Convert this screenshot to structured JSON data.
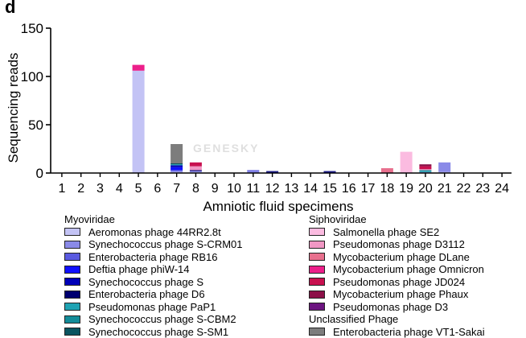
{
  "panel_label": "d",
  "watermark": "GENESKY",
  "chart_data": {
    "type": "bar",
    "stacked": true,
    "xlabel": "Amniotic fluid specimens",
    "ylabel": "Sequencing reads",
    "ylim": [
      0,
      150
    ],
    "yticks": [
      0,
      50,
      100,
      150
    ],
    "categories": [
      "1",
      "2",
      "3",
      "4",
      "5",
      "6",
      "7",
      "8",
      "9",
      "10",
      "11",
      "12",
      "13",
      "14",
      "15",
      "16",
      "17",
      "18",
      "19",
      "20",
      "21",
      "22",
      "23",
      "24"
    ],
    "series": [
      {
        "name": "Aeromonas phage 44RR2.8t",
        "color": "#c3c3f5",
        "values": [
          0,
          0,
          0,
          0,
          106,
          0,
          1,
          1,
          0,
          0,
          0,
          0,
          0,
          0,
          0,
          0,
          0,
          0,
          0,
          0,
          1,
          0,
          0,
          0
        ]
      },
      {
        "name": "Synechococcus phage S-CRM01",
        "color": "#8a8ae8",
        "values": [
          0,
          0,
          0,
          0,
          0,
          0,
          1,
          1,
          0,
          0,
          2,
          0,
          0,
          0,
          0,
          0,
          0,
          0,
          0,
          1,
          10,
          0,
          0,
          0
        ]
      },
      {
        "name": "Enterobacteria phage RB16",
        "color": "#5a5ae0",
        "values": [
          0,
          0,
          0,
          0,
          0,
          0,
          1,
          0,
          0,
          0,
          1,
          0,
          0,
          0,
          0,
          0,
          0,
          0,
          0,
          0,
          0,
          0,
          0,
          0
        ]
      },
      {
        "name": "Deftia phage phiW-14",
        "color": "#1010ff",
        "values": [
          0,
          0,
          0,
          0,
          0,
          0,
          3,
          0,
          0,
          0,
          0,
          0,
          0,
          0,
          0,
          0,
          0,
          0,
          0,
          0,
          0,
          0,
          0,
          0
        ]
      },
      {
        "name": "Synechococcus phage S",
        "color": "#0000b8",
        "values": [
          0,
          0,
          0,
          0,
          0,
          0,
          2,
          0,
          0,
          0,
          0,
          1,
          0,
          0,
          1,
          0,
          0,
          0,
          0,
          0,
          0,
          0,
          0,
          0
        ]
      },
      {
        "name": "Enterobacteria phage D6",
        "color": "#000070",
        "values": [
          0,
          0,
          0,
          0,
          0,
          0,
          0,
          1,
          0,
          0,
          0,
          1,
          0,
          0,
          1,
          0,
          0,
          0,
          0,
          0,
          0,
          0,
          0,
          0
        ]
      },
      {
        "name": "Pseudomonas phage PaP1",
        "color": "#1fa3b3",
        "values": [
          0,
          0,
          0,
          0,
          0,
          0,
          1,
          0,
          0,
          0,
          0,
          0,
          0,
          0,
          0,
          0,
          0,
          0,
          0,
          1,
          0,
          0,
          0,
          0
        ]
      },
      {
        "name": "Synechococcus phage S-CBM2",
        "color": "#138c99",
        "values": [
          0,
          0,
          0,
          0,
          0,
          0,
          0,
          0,
          0,
          0,
          0,
          0,
          0,
          0,
          0,
          0,
          0,
          0,
          0,
          1,
          0,
          0,
          0,
          0
        ]
      },
      {
        "name": "Synechococcus phage S-SM1",
        "color": "#0b5560",
        "values": [
          0,
          0,
          0,
          0,
          0,
          0,
          1,
          0,
          0,
          0,
          0,
          0,
          0,
          0,
          0,
          0,
          0,
          0,
          0,
          0,
          0,
          0,
          0,
          0
        ]
      },
      {
        "name": "Salmonella phage SE2",
        "color": "#fbbbe0",
        "values": [
          0,
          0,
          0,
          0,
          0,
          0,
          0,
          0,
          0,
          0,
          0,
          0,
          0,
          0,
          0,
          0,
          0,
          0,
          22,
          0,
          0,
          0,
          0,
          0
        ]
      },
      {
        "name": "Pseudomonas phage D3112",
        "color": "#f197c4",
        "values": [
          0,
          0,
          0,
          0,
          0,
          0,
          0,
          4,
          0,
          0,
          0,
          0,
          0,
          0,
          0,
          0,
          0,
          0,
          0,
          1,
          0,
          0,
          0,
          0
        ]
      },
      {
        "name": "Mycobacterium phage DLane",
        "color": "#e8708e",
        "values": [
          0,
          0,
          0,
          0,
          0,
          0,
          0,
          0,
          0,
          0,
          0,
          0,
          0,
          0,
          0,
          0,
          0,
          5,
          0,
          0,
          0,
          0,
          0,
          0
        ]
      },
      {
        "name": "Mycobacterium phage Omnicron",
        "color": "#ec1f8a",
        "values": [
          0,
          0,
          0,
          0,
          6,
          0,
          0,
          0,
          0,
          0,
          0,
          0,
          0,
          0,
          0,
          0,
          0,
          0,
          0,
          0,
          0,
          0,
          0,
          0
        ]
      },
      {
        "name": "Pseudomonas phage JD024",
        "color": "#c8104f",
        "values": [
          0,
          0,
          0,
          0,
          0,
          0,
          0,
          4,
          0,
          0,
          0,
          0,
          0,
          0,
          0,
          0,
          0,
          0,
          0,
          3,
          0,
          0,
          0,
          0
        ]
      },
      {
        "name": "Mycobacterium phage Phaux",
        "color": "#8c1048",
        "values": [
          0,
          0,
          0,
          0,
          0,
          0,
          0,
          0,
          0,
          0,
          0,
          0,
          0,
          0,
          0,
          0,
          0,
          0,
          0,
          2,
          0,
          0,
          0,
          0
        ]
      },
      {
        "name": "Pseudomonas phage D3",
        "color": "#6c1480",
        "values": [
          0,
          0,
          0,
          0,
          0,
          0,
          0,
          0,
          0,
          0,
          0,
          0,
          0,
          0,
          0,
          0,
          0,
          0,
          0,
          0,
          0,
          0,
          0,
          0
        ]
      },
      {
        "name": "Enterobacteria phage VT1-Sakai",
        "color": "#7d7d7d",
        "values": [
          0,
          0,
          0,
          0,
          0,
          0,
          20,
          0,
          0,
          0,
          0,
          0,
          0,
          0,
          0,
          0,
          0,
          0,
          0,
          0,
          0,
          0,
          0,
          0
        ]
      }
    ],
    "legend_groups": [
      {
        "title": "Myoviridae",
        "placement": "bottom-left",
        "items": [
          0,
          1,
          2,
          3,
          4,
          5,
          6,
          7,
          8
        ]
      },
      {
        "title": "Siphoviridae",
        "placement": "bottom-right",
        "items": [
          9,
          10,
          11,
          12,
          13,
          14,
          15
        ]
      },
      {
        "title": "Unclassified Phage",
        "placement": "bottom-right",
        "items": [
          16
        ]
      }
    ]
  }
}
